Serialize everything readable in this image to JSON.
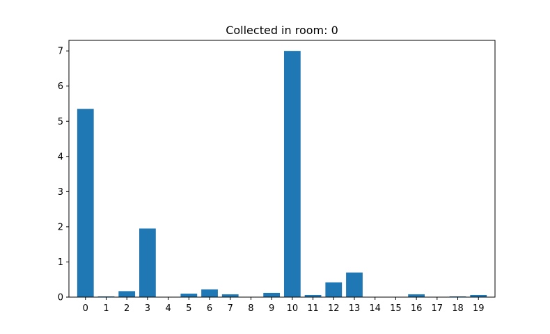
{
  "chart_data": {
    "type": "bar",
    "title": "Collected in room: 0",
    "xlabel": "",
    "ylabel": "",
    "categories": [
      "0",
      "1",
      "2",
      "3",
      "4",
      "5",
      "6",
      "7",
      "8",
      "9",
      "10",
      "11",
      "12",
      "13",
      "14",
      "15",
      "16",
      "17",
      "18",
      "19"
    ],
    "values": [
      5.35,
      0.02,
      0.17,
      1.95,
      0.0,
      0.1,
      0.22,
      0.08,
      0.0,
      0.12,
      7.0,
      0.06,
      0.42,
      0.7,
      0.0,
      0.0,
      0.08,
      0.0,
      0.02,
      0.06
    ],
    "ylim": [
      0,
      7.3
    ],
    "yticks": [
      "0",
      "1",
      "2",
      "3",
      "4",
      "5",
      "6",
      "7"
    ],
    "grid": false,
    "bar_color": "#1f77b4"
  }
}
